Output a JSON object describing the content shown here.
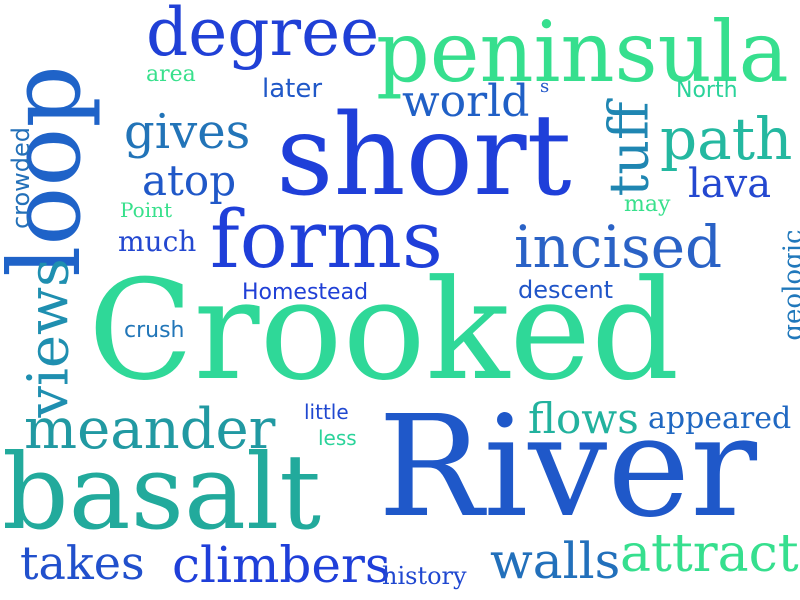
{
  "colors": {
    "blue": "#1f3fd9",
    "royal": "#2456c8",
    "steel": "#2f78b8",
    "teal": "#1fa69c",
    "green": "#27d39a",
    "mint": "#38e08c"
  },
  "words": [
    {
      "key": "crooked",
      "text": "Crooked"
    },
    {
      "key": "river",
      "text": "River"
    },
    {
      "key": "short",
      "text": "short"
    },
    {
      "key": "basalt",
      "text": "basalt"
    },
    {
      "key": "loop",
      "text": "loop"
    },
    {
      "key": "peninsula",
      "text": "peninsula"
    },
    {
      "key": "degree",
      "text": "degree"
    },
    {
      "key": "forms",
      "text": "forms"
    },
    {
      "key": "incised",
      "text": "incised"
    },
    {
      "key": "meander",
      "text": "meander"
    },
    {
      "key": "views",
      "text": "views"
    },
    {
      "key": "path",
      "text": "path"
    },
    {
      "key": "tuff",
      "text": "tuff"
    },
    {
      "key": "gives",
      "text": "gives"
    },
    {
      "key": "world",
      "text": "world"
    },
    {
      "key": "atop",
      "text": "atop"
    },
    {
      "key": "lava",
      "text": "lava"
    },
    {
      "key": "climbers",
      "text": "climbers"
    },
    {
      "key": "attract",
      "text": "attract"
    },
    {
      "key": "walls",
      "text": "walls"
    },
    {
      "key": "takes",
      "text": "takes"
    },
    {
      "key": "flows",
      "text": "flows"
    },
    {
      "key": "appeared",
      "text": "appeared"
    },
    {
      "key": "much",
      "text": "much"
    },
    {
      "key": "geologic",
      "text": "geologic"
    },
    {
      "key": "history",
      "text": "history"
    },
    {
      "key": "descent",
      "text": "descent"
    },
    {
      "key": "later",
      "text": "later"
    },
    {
      "key": "homestead",
      "text": "Homestead"
    },
    {
      "key": "crowded",
      "text": "crowded"
    },
    {
      "key": "north",
      "text": "North"
    },
    {
      "key": "crush",
      "text": "crush"
    },
    {
      "key": "little",
      "text": "little"
    },
    {
      "key": "less",
      "text": "less"
    },
    {
      "key": "point",
      "text": "Point"
    },
    {
      "key": "may",
      "text": "may"
    },
    {
      "key": "area",
      "text": "area"
    },
    {
      "key": "s",
      "text": "s"
    }
  ]
}
